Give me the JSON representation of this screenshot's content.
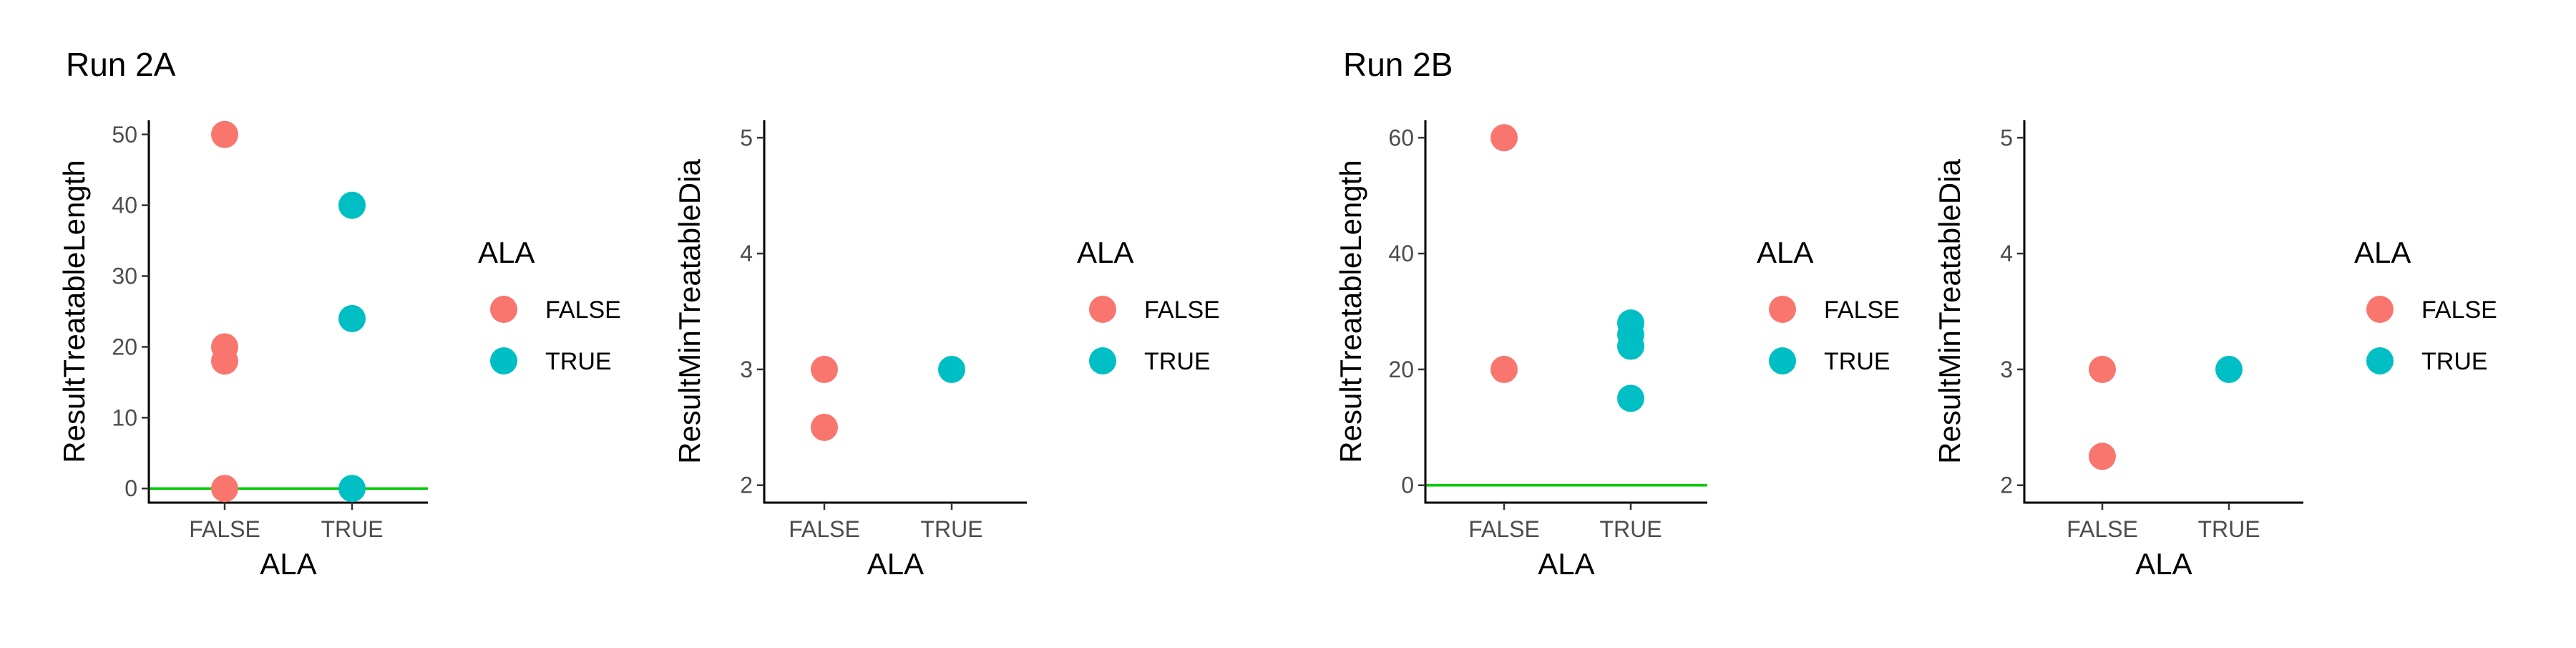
{
  "run_titles": [
    "Run 2A",
    "Run 2B"
  ],
  "colors": {
    "false": "#F8766D",
    "true": "#00BFC4",
    "ref_line": "#00CC00"
  },
  "chart_data": [
    {
      "type": "scatter",
      "run": "Run 2A",
      "xlabel": "ALA",
      "ylabel": "ResultTreatableLength",
      "categories": [
        "FALSE",
        "TRUE"
      ],
      "ylim": [
        -2,
        52
      ],
      "yticks": [
        0,
        10,
        20,
        30,
        40,
        50
      ],
      "hline": 0,
      "legend": {
        "title": "ALA",
        "entries": [
          "FALSE",
          "TRUE"
        ],
        "placement": "right"
      },
      "series": [
        {
          "name": "FALSE",
          "x": [
            "FALSE",
            "FALSE",
            "FALSE",
            "FALSE"
          ],
          "y": [
            50,
            20,
            18,
            0
          ]
        },
        {
          "name": "TRUE",
          "x": [
            "TRUE",
            "TRUE",
            "TRUE"
          ],
          "y": [
            40,
            24,
            0
          ]
        }
      ]
    },
    {
      "type": "scatter",
      "run": "Run 2A",
      "xlabel": "ALA",
      "ylabel": "ResultMinTreatableDia",
      "categories": [
        "FALSE",
        "TRUE"
      ],
      "ylim": [
        1.85,
        5.15
      ],
      "yticks": [
        2,
        3,
        4,
        5
      ],
      "hline": null,
      "legend": {
        "title": "ALA",
        "entries": [
          "FALSE",
          "TRUE"
        ],
        "placement": "right"
      },
      "series": [
        {
          "name": "FALSE",
          "x": [
            "FALSE",
            "FALSE"
          ],
          "y": [
            3.0,
            2.5
          ]
        },
        {
          "name": "TRUE",
          "x": [
            "TRUE"
          ],
          "y": [
            3.0
          ]
        }
      ]
    },
    {
      "type": "scatter",
      "run": "Run 2B",
      "xlabel": "ALA",
      "ylabel": "ResultTreatableLength",
      "categories": [
        "FALSE",
        "TRUE"
      ],
      "ylim": [
        -3,
        63
      ],
      "yticks": [
        0,
        20,
        40,
        60
      ],
      "hline": 0,
      "legend": {
        "title": "ALA",
        "entries": [
          "FALSE",
          "TRUE"
        ],
        "placement": "right"
      },
      "series": [
        {
          "name": "FALSE",
          "x": [
            "FALSE",
            "FALSE"
          ],
          "y": [
            60,
            20
          ]
        },
        {
          "name": "TRUE",
          "x": [
            "TRUE",
            "TRUE",
            "TRUE",
            "TRUE"
          ],
          "y": [
            28,
            26,
            24,
            15
          ]
        }
      ]
    },
    {
      "type": "scatter",
      "run": "Run 2B",
      "xlabel": "ALA",
      "ylabel": "ResultMinTreatableDia",
      "categories": [
        "FALSE",
        "TRUE"
      ],
      "ylim": [
        1.85,
        5.15
      ],
      "yticks": [
        2,
        3,
        4,
        5
      ],
      "hline": null,
      "legend": {
        "title": "ALA",
        "entries": [
          "FALSE",
          "TRUE"
        ],
        "placement": "right"
      },
      "series": [
        {
          "name": "FALSE",
          "x": [
            "FALSE",
            "FALSE"
          ],
          "y": [
            3.0,
            2.25
          ]
        },
        {
          "name": "TRUE",
          "x": [
            "TRUE"
          ],
          "y": [
            3.0
          ]
        }
      ]
    }
  ]
}
